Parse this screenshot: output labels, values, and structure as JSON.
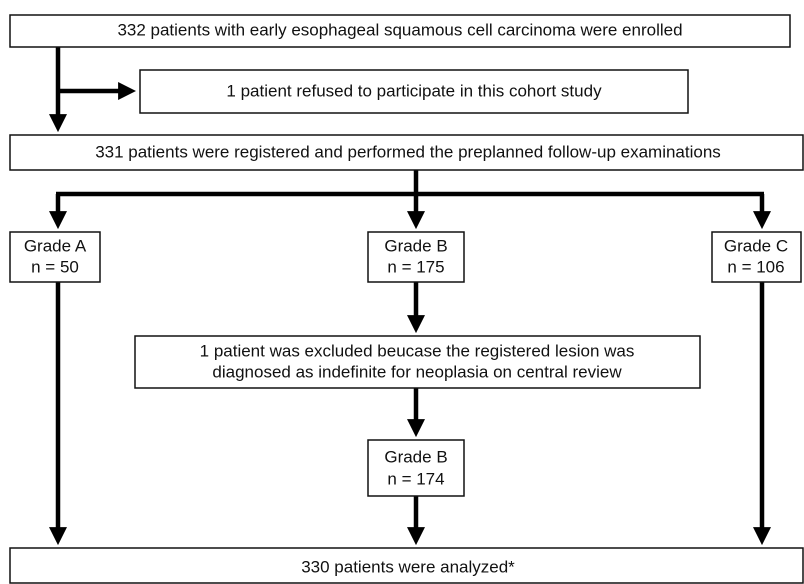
{
  "nodes": [
    {
      "lines": [
        "332 patients with early esophageal squamous cell carcinoma were enrolled"
      ]
    },
    {
      "lines": [
        "1 patient refused to participate in this cohort study"
      ]
    },
    {
      "lines": [
        "331 patients were registered and performed the preplanned follow-up examinations"
      ]
    },
    {
      "lines": [
        "Grade A",
        "n = 50"
      ]
    },
    {
      "lines": [
        "Grade B",
        "n = 175"
      ]
    },
    {
      "lines": [
        "Grade C",
        "n = 106"
      ]
    },
    {
      "lines": [
        "1 patient was excluded beucase the registered lesion was",
        "diagnosed as indefinite for neoplasia on central review"
      ]
    },
    {
      "lines": [
        "Grade B",
        "n = 174"
      ]
    },
    {
      "lines": [
        "330 patients were analyzed*"
      ]
    }
  ]
}
